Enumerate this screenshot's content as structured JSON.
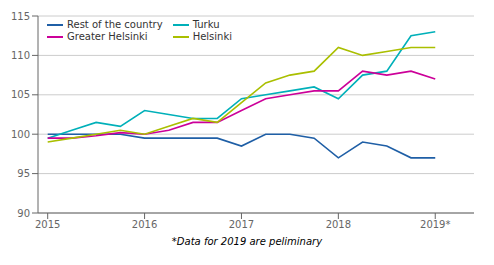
{
  "chart_data": {
    "type": "line",
    "x": [
      2015.0,
      2015.25,
      2015.5,
      2015.75,
      2016.0,
      2016.25,
      2016.5,
      2016.75,
      2017.0,
      2017.25,
      2017.5,
      2017.75,
      2018.0,
      2018.25,
      2018.5,
      2018.75,
      2019.0
    ],
    "series": [
      {
        "name": "Rest of the country",
        "color": "#1f5fa6",
        "values": [
          100.0,
          100.0,
          100.0,
          100.0,
          99.5,
          99.5,
          99.5,
          99.5,
          98.5,
          100.0,
          100.0,
          99.5,
          97.0,
          99.0,
          98.5,
          97.0,
          97.0
        ]
      },
      {
        "name": "Turku",
        "color": "#00b0b9",
        "values": [
          99.5,
          100.5,
          101.5,
          101.0,
          103.0,
          102.5,
          102.0,
          102.0,
          104.5,
          105.0,
          105.5,
          106.0,
          104.5,
          107.5,
          108.0,
          112.5,
          113.0
        ]
      },
      {
        "name": "Greater Helsinki",
        "color": "#cc0099",
        "values": [
          99.5,
          99.5,
          99.8,
          100.2,
          100.0,
          100.5,
          101.5,
          101.5,
          103.0,
          104.5,
          105.0,
          105.5,
          105.5,
          108.0,
          107.5,
          108.0,
          107.0
        ]
      },
      {
        "name": "Helsinki",
        "color": "#aabf00",
        "values": [
          99.0,
          99.5,
          100.0,
          100.5,
          100.0,
          101.0,
          102.0,
          101.5,
          104.0,
          106.5,
          107.5,
          108.0,
          111.0,
          110.0,
          110.5,
          111.0,
          111.0
        ]
      }
    ],
    "xlim": [
      2014.9,
      2019.4
    ],
    "xticks": [
      2015,
      2016,
      2017,
      2018,
      {
        "value": 2019,
        "label": "2019*"
      }
    ],
    "ylim": [
      90,
      115
    ],
    "yticks": [
      90,
      95,
      100,
      105,
      110,
      115
    ],
    "grid": true,
    "legend": "upper left",
    "annotations": [
      "*Data for 2019 are peliminary"
    ]
  }
}
